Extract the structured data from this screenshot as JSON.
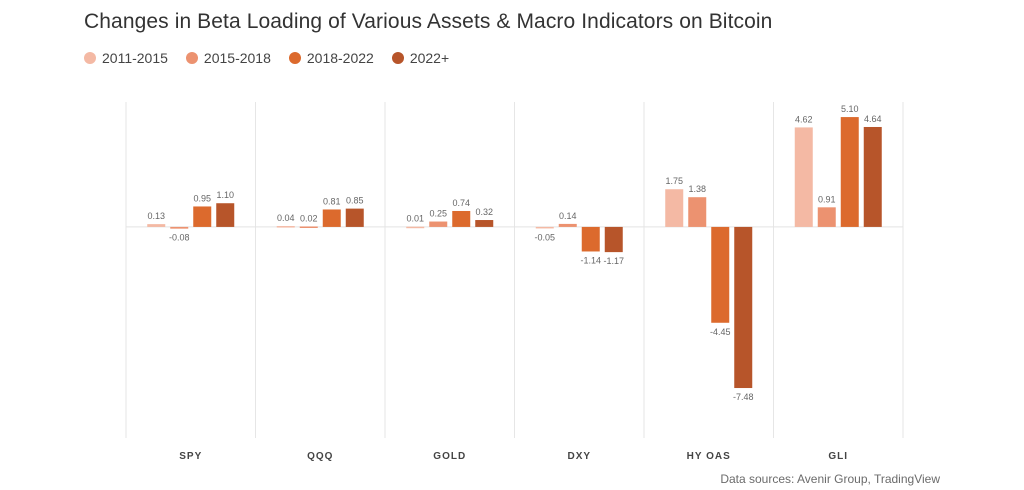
{
  "chart_data": {
    "type": "bar",
    "title": "Changes in Beta Loading of Various Assets & Macro Indicators on Bitcoin",
    "categories": [
      "SPY",
      "QQQ",
      "GOLD",
      "DXY",
      "HY OAS",
      "GLI"
    ],
    "series": [
      {
        "name": "2011-2015",
        "color": "#f4b9a4",
        "values": [
          0.13,
          0.04,
          0.01,
          -0.05,
          1.75,
          4.62
        ]
      },
      {
        "name": "2015-2018",
        "color": "#ec9270",
        "values": [
          -0.08,
          0.02,
          0.25,
          0.14,
          1.38,
          0.91
        ]
      },
      {
        "name": "2018-2022",
        "color": "#dc6a2d",
        "values": [
          0.95,
          0.81,
          0.74,
          -1.14,
          -4.45,
          5.1
        ]
      },
      {
        "name": "2022+",
        "color": "#b7552a",
        "values": [
          1.1,
          0.85,
          0.32,
          -1.17,
          -7.48,
          4.64
        ]
      }
    ],
    "value_labels": [
      [
        "0.13",
        "0.04",
        "0.01",
        "-0.05",
        "1.75",
        "4.62"
      ],
      [
        "-0.08",
        "0.02",
        "0.25",
        "0.14",
        "1.38",
        "0.91"
      ],
      [
        "0.95",
        "0.81",
        "0.74",
        "-1.14",
        "-4.45",
        "5.10"
      ],
      [
        "1.10",
        "0.85",
        "0.32",
        "-1.17",
        "-7.48",
        "4.64"
      ]
    ],
    "ylim": [
      -9.8,
      5.8
    ],
    "legend_position": "top-left",
    "grid": false
  },
  "source": "Data sources: Avenir Group, TradingView"
}
